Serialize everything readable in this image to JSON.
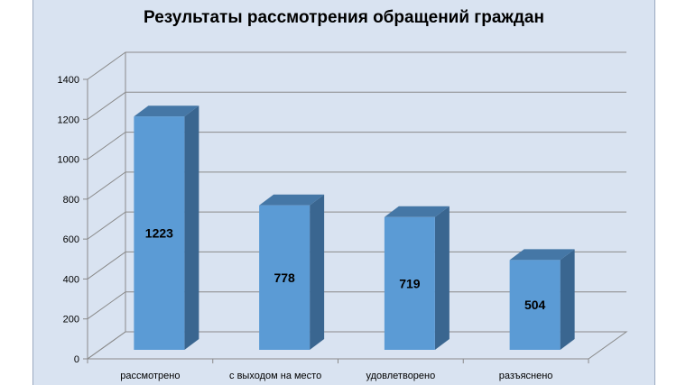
{
  "chart_data": {
    "type": "bar",
    "title": "Результаты рассмотрения обращений граждан",
    "categories": [
      "рассмотрено",
      "с выходом на место",
      "удовлетворено",
      "разъяснено"
    ],
    "values": [
      1223,
      778,
      719,
      504
    ],
    "yticks": [
      0,
      200,
      400,
      600,
      800,
      1000,
      1200,
      1400
    ],
    "ylim": [
      0,
      1400
    ],
    "grid": true,
    "legend": "none",
    "colors": {
      "front": "#5b9bd5",
      "side": "#3a6690",
      "top": "#4577a6",
      "background": "#d9e3f1",
      "grid": "#8a8a8a"
    }
  }
}
